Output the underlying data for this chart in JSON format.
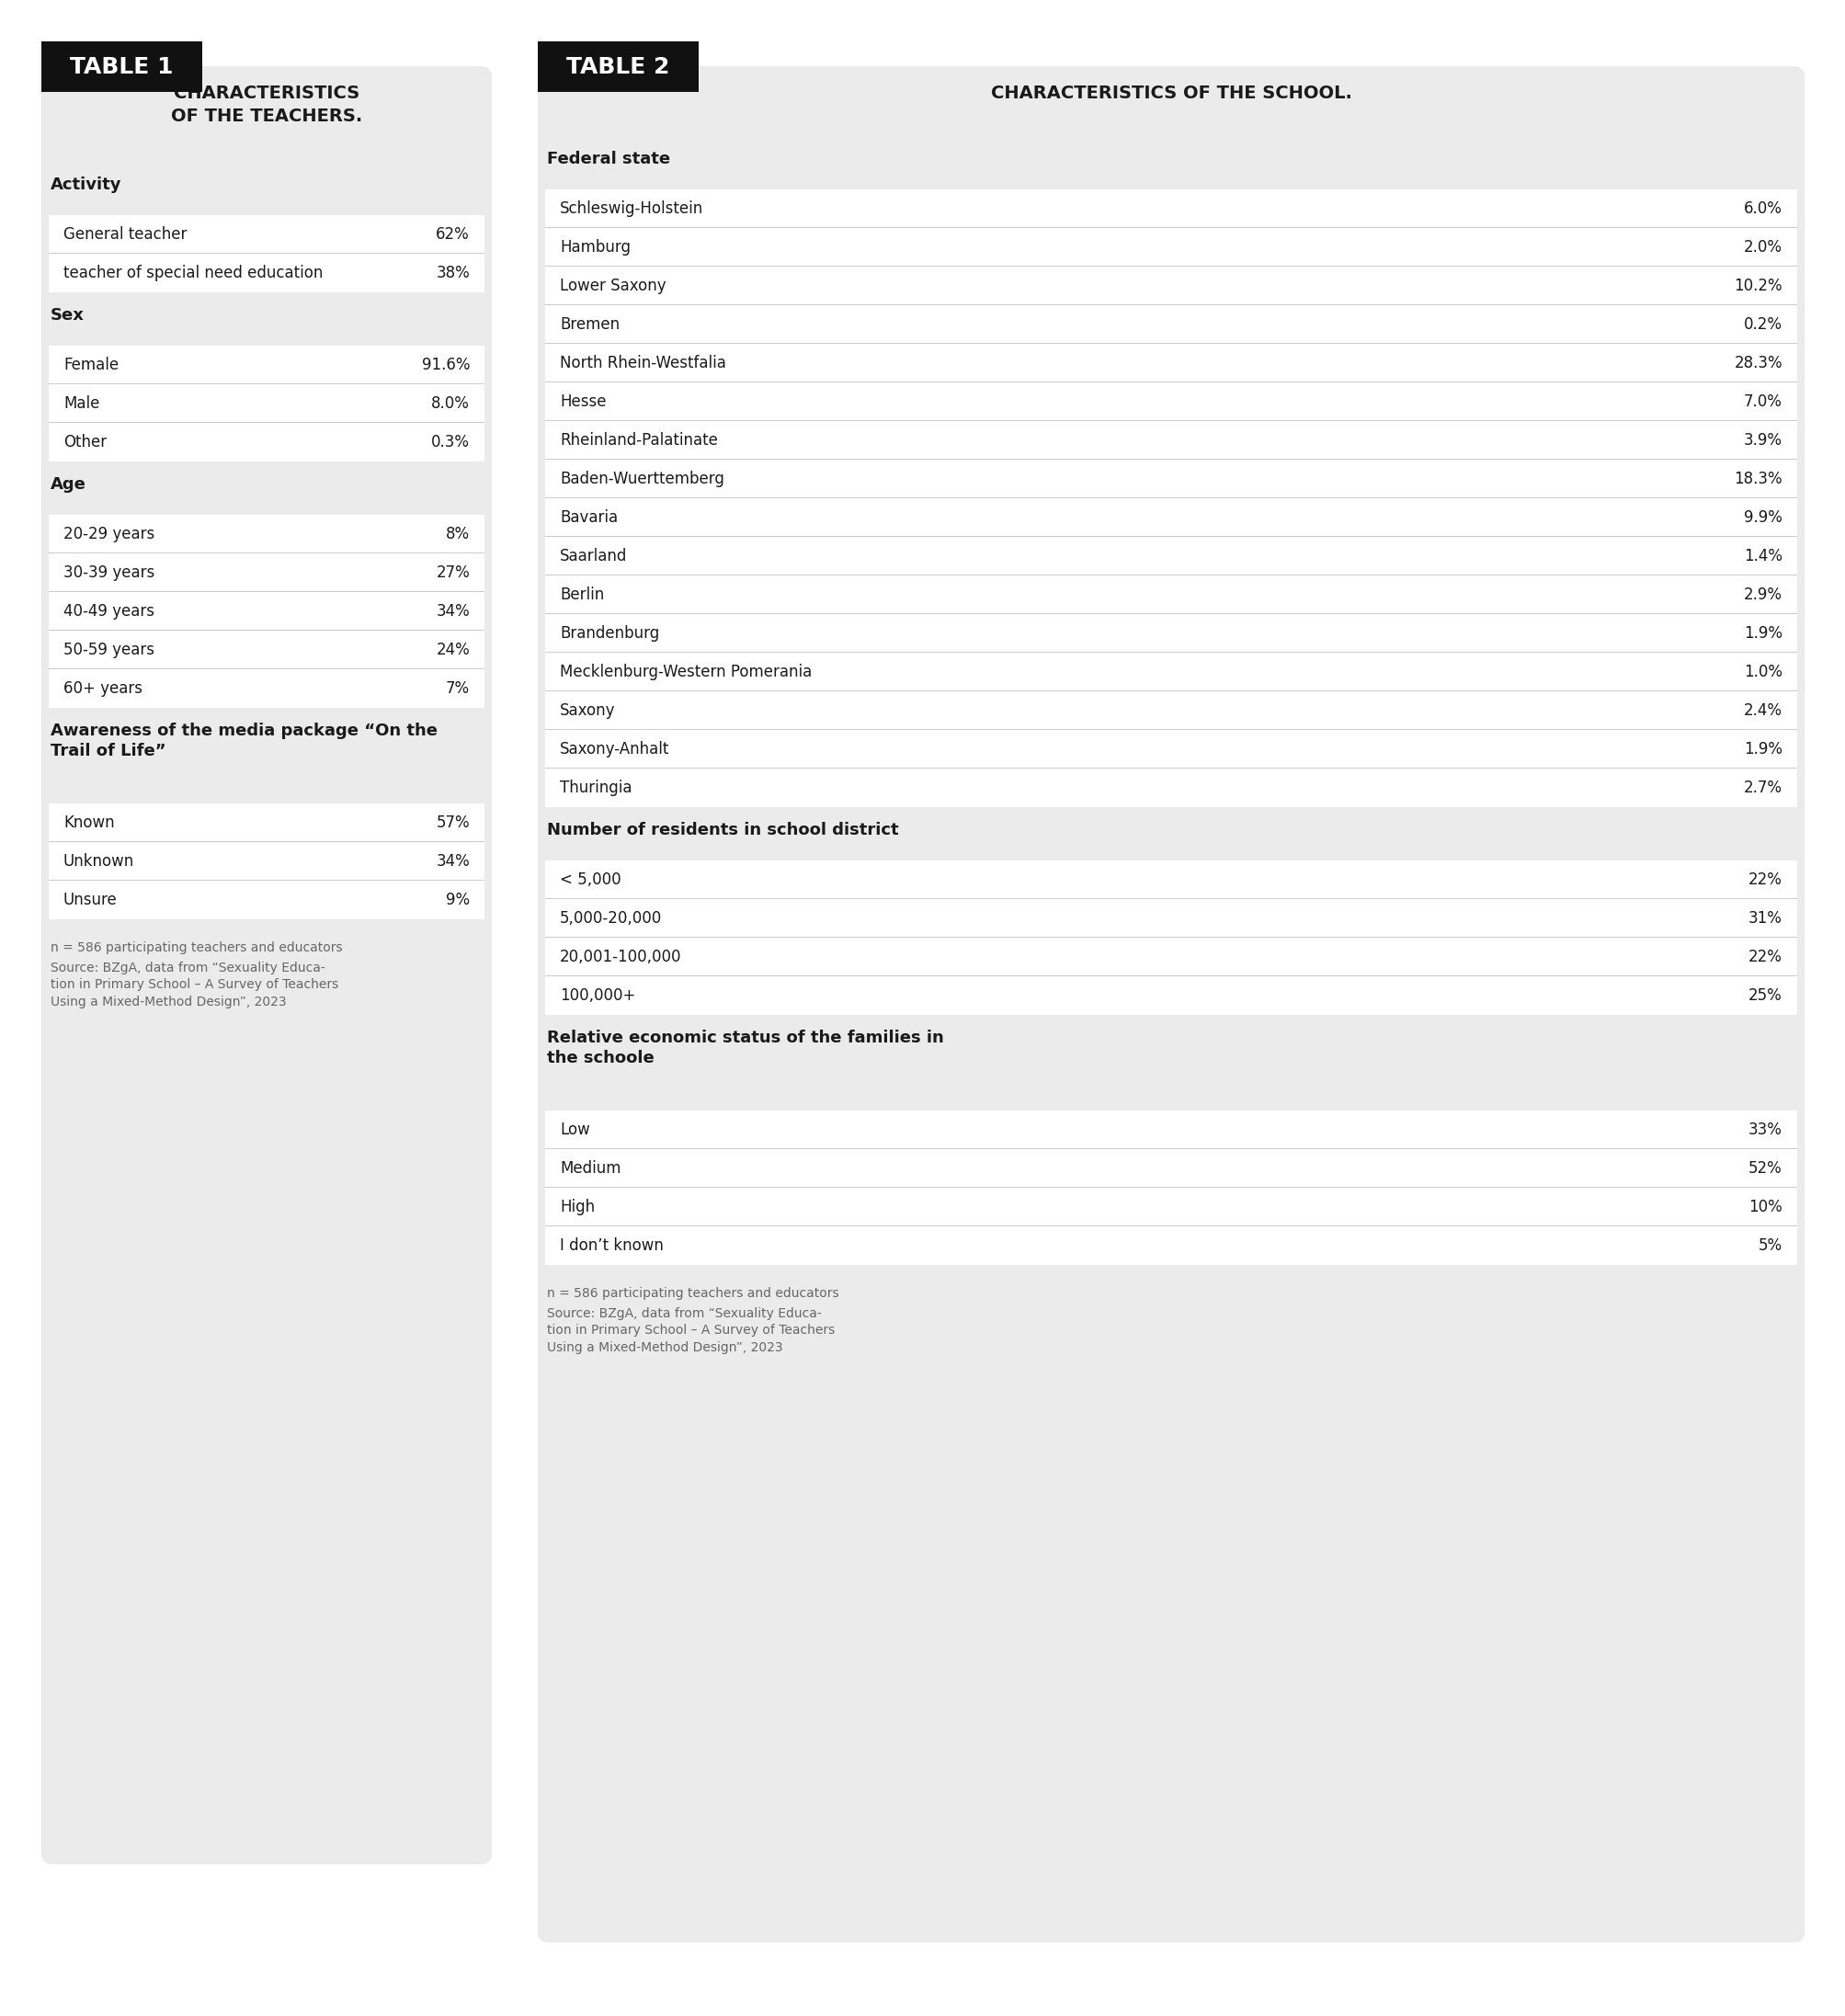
{
  "table1_title": "CHARACTERISTICS\nOF THE TEACHERS.",
  "table2_title": "CHARACTERISTICS OF THE SCHOOL.",
  "table1_label": "TABLE 1",
  "table2_label": "TABLE 2",
  "bg_color": "#ebebeb",
  "white": "#ffffff",
  "black": "#111111",
  "dark_text": "#1a1a1a",
  "footer_color": "#666666",
  "table1_sections": [
    {
      "header": "Activity",
      "header_bold": true,
      "rows": [
        [
          "General teacher",
          "62%"
        ],
        [
          "teacher of special need education",
          "38%"
        ]
      ]
    },
    {
      "header": "Sex",
      "header_bold": true,
      "rows": [
        [
          "Female",
          "91.6%"
        ],
        [
          "Male",
          "8.0%"
        ],
        [
          "Other",
          "0.3%"
        ]
      ]
    },
    {
      "header": "Age",
      "header_bold": true,
      "rows": [
        [
          "20-29 years",
          "8%"
        ],
        [
          "30-39 years",
          "27%"
        ],
        [
          "40-49 years",
          "34%"
        ],
        [
          "50-59 years",
          "24%"
        ],
        [
          "60+ years",
          "7%"
        ]
      ]
    },
    {
      "header": "Awareness of the media package “On the\nTrail of Life”",
      "header_bold": true,
      "rows": [
        [
          "Known",
          "57%"
        ],
        [
          "Unknown",
          "34%"
        ],
        [
          "Unsure",
          "9%"
        ]
      ]
    }
  ],
  "table1_footer_line1": "n = 586 participating teachers and educators",
  "table1_footer_line2": "Source: BZgA, data from “Sexuality Educa-\ntion in Primary School – A Survey of Teachers\nUsing a Mixed-Method Design”, 2023",
  "table2_sections": [
    {
      "header": "Federal state",
      "header_bold": true,
      "rows": [
        [
          "Schleswig-Holstein",
          "6.0%"
        ],
        [
          "Hamburg",
          "2.0%"
        ],
        [
          "Lower Saxony",
          "10.2%"
        ],
        [
          "Bremen",
          "0.2%"
        ],
        [
          "North Rhein-Westfalia",
          "28.3%"
        ],
        [
          "Hesse",
          "7.0%"
        ],
        [
          "Rheinland-Palatinate",
          "3.9%"
        ],
        [
          "Baden-Wuerttemberg",
          "18.3%"
        ],
        [
          "Bavaria",
          "9.9%"
        ],
        [
          "Saarland",
          "1.4%"
        ],
        [
          "Berlin",
          "2.9%"
        ],
        [
          "Brandenburg",
          "1.9%"
        ],
        [
          "Mecklenburg-Western Pomerania",
          "1.0%"
        ],
        [
          "Saxony",
          "2.4%"
        ],
        [
          "Saxony-Anhalt",
          "1.9%"
        ],
        [
          "Thuringia",
          "2.7%"
        ]
      ]
    },
    {
      "header": "Number of residents in school district",
      "header_bold": true,
      "rows": [
        [
          "< 5,000",
          "22%"
        ],
        [
          "5,000-20,000",
          "31%"
        ],
        [
          "20,001-100,000",
          "22%"
        ],
        [
          "100,000+",
          "25%"
        ]
      ]
    },
    {
      "header": "Relative economic status of the families in\nthe schoole",
      "header_bold": true,
      "rows": [
        [
          "Low",
          "33%"
        ],
        [
          "Medium",
          "52%"
        ],
        [
          "High",
          "10%"
        ],
        [
          "I don’t known",
          "5%"
        ]
      ]
    }
  ],
  "table2_footer_line1": "n = 586 participating teachers and educators",
  "table2_footer_line2": "Source: BZgA, data from “Sexuality Educa-\ntion in Primary School – A Survey of Teachers\nUsing a Mixed-Method Design”, 2023"
}
